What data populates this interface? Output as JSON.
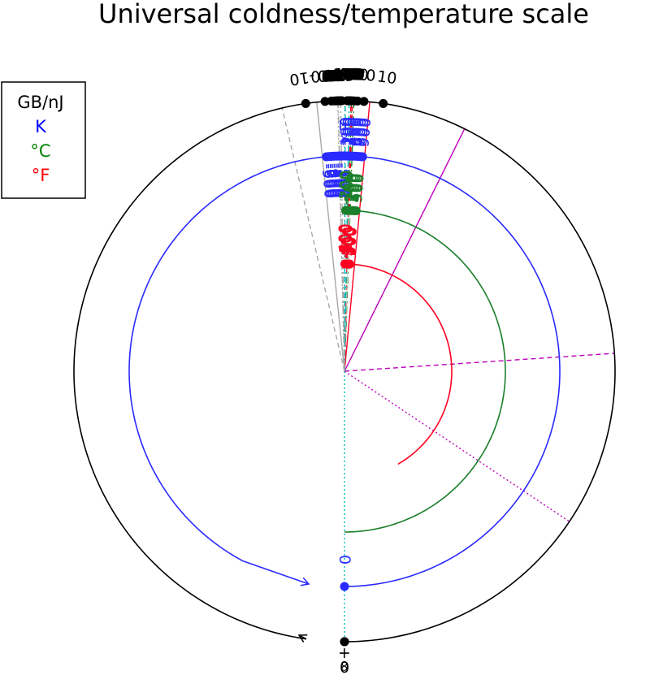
{
  "title": "Universal coldness/temperature scale",
  "legend": [
    {
      "label": "GB/nJ",
      "color": "#000000"
    },
    {
      "label": "K",
      "color": "#0000ff"
    },
    {
      "label": "°C",
      "color": "#008000"
    },
    {
      "label": "°F",
      "color": "#ff0000"
    }
  ],
  "colors": {
    "coldness": "#000000",
    "kelvin": "#2a2aff",
    "celsius": "#1a7f2a",
    "fahrenheit": "#ff0022",
    "grey": "#a8a8a8",
    "magenta": "#bb00bb",
    "cyan": "#00bbbb",
    "fill": "#bfe3c4"
  },
  "coldness": {
    "labels": [
      "0",
      "10",
      "20",
      "30",
      "40",
      "50",
      "60",
      "70",
      "80",
      "90",
      "100",
      "120",
      "140",
      "-10",
      "-20",
      "-30",
      "-40",
      "-50",
      "-60",
      "-70",
      "-80",
      "-90",
      "-100",
      "-120",
      "-140"
    ],
    "infinity_label": "+∞",
    "values": [
      0,
      10,
      20,
      30,
      40,
      50,
      60,
      70,
      80,
      90,
      100,
      120,
      140,
      -10,
      -20,
      -30,
      -40,
      -50,
      -60,
      -70,
      -80,
      -90,
      -100,
      -120,
      -140
    ]
  },
  "kelvin": {
    "positive_values": [
      100,
      200,
      300,
      400,
      500,
      600,
      700,
      800,
      900
    ],
    "positive_labels": [
      "100",
      "200",
      "300",
      "400",
      "500",
      "600",
      "700",
      "800",
      "900"
    ],
    "negative_values": [
      -100,
      -200,
      -300,
      -400,
      -500,
      -600,
      -700,
      -800,
      -900
    ],
    "negative_labels": [
      "-100",
      "-200",
      "-300",
      "-400",
      "-500",
      "-600",
      "-700",
      "-800",
      "-900"
    ],
    "zero_label": "0",
    "infinity_label": "±∞"
  },
  "celsius": {
    "values": [
      -200,
      -100,
      0,
      100,
      200,
      300,
      400,
      500
    ],
    "labels": [
      "-200",
      "-100",
      "0",
      "100",
      "200",
      "300",
      "400",
      "500"
    ]
  },
  "fahrenheit": {
    "values": [
      -400,
      -300,
      -200,
      -100,
      0,
      100,
      200,
      300,
      400,
      500
    ],
    "labels": [
      "-400",
      "-300",
      "-200",
      "-100",
      "0",
      "100",
      "200",
      "300",
      "400",
      "500"
    ]
  }
}
